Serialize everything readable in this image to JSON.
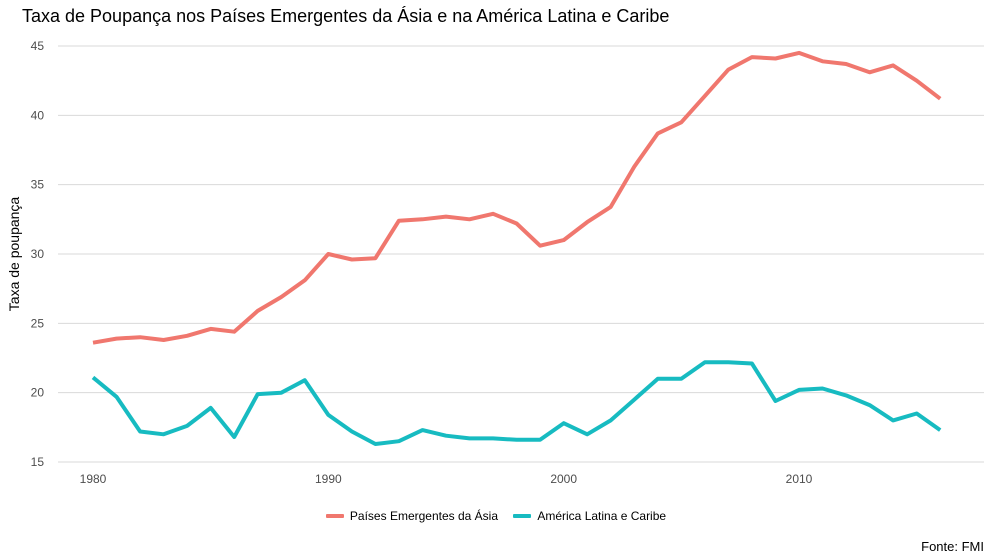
{
  "chart_data": {
    "type": "line",
    "title": "Taxa de Poupança nos Países Emergentes da Ásia e na América Latina e Caribe",
    "xlabel": "",
    "ylabel": "Taxa de poupança",
    "caption": "Fonte: FMI",
    "xlim": [
      1980,
      2016
    ],
    "ylim": [
      15,
      45
    ],
    "x_ticks": [
      1980,
      1990,
      2000,
      2010
    ],
    "y_ticks": [
      15,
      20,
      25,
      30,
      35,
      40,
      45
    ],
    "grid": "horizontal",
    "legend_position": "bottom",
    "x": [
      1980,
      1981,
      1982,
      1983,
      1984,
      1985,
      1986,
      1987,
      1988,
      1989,
      1990,
      1991,
      1992,
      1993,
      1994,
      1995,
      1996,
      1997,
      1998,
      1999,
      2000,
      2001,
      2002,
      2003,
      2004,
      2005,
      2006,
      2007,
      2008,
      2009,
      2010,
      2011,
      2012,
      2013,
      2014,
      2015,
      2016
    ],
    "series": [
      {
        "name": "Países Emergentes da Ásia",
        "color": "#F0776E",
        "values": [
          23.6,
          23.9,
          24.0,
          23.8,
          24.1,
          24.6,
          24.4,
          25.9,
          26.9,
          28.1,
          30.0,
          29.6,
          29.7,
          32.4,
          32.5,
          32.7,
          32.5,
          32.9,
          32.2,
          30.6,
          31.0,
          32.3,
          33.4,
          36.3,
          38.7,
          39.5,
          41.4,
          43.3,
          44.2,
          44.1,
          44.5,
          43.9,
          43.7,
          43.1,
          43.6,
          42.5,
          41.2
        ]
      },
      {
        "name": "América Latina e Caribe",
        "color": "#17BBC1",
        "values": [
          21.1,
          19.7,
          17.2,
          17.0,
          17.6,
          18.9,
          16.8,
          19.9,
          20.0,
          20.9,
          18.4,
          17.2,
          16.3,
          16.5,
          17.3,
          16.9,
          16.7,
          16.7,
          16.6,
          16.6,
          17.8,
          17.0,
          18.0,
          19.5,
          21.0,
          21.0,
          22.2,
          22.2,
          22.1,
          19.4,
          20.2,
          20.3,
          19.8,
          19.1,
          18.0,
          18.5,
          17.3
        ]
      }
    ]
  }
}
